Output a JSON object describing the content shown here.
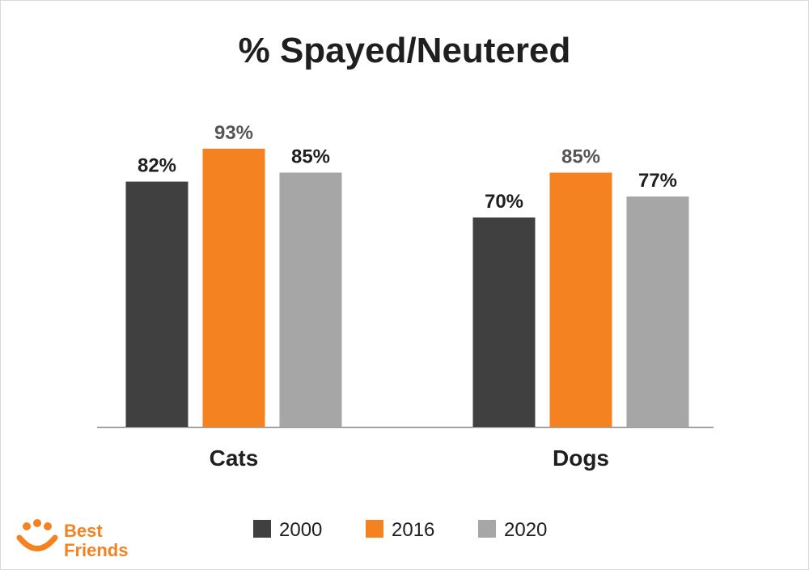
{
  "chart_data": {
    "type": "bar",
    "title": "% Spayed/Neutered",
    "xlabel": "",
    "ylabel": "",
    "categories": [
      "Cats",
      "Dogs"
    ],
    "series": [
      {
        "name": "2000",
        "values": [
          82,
          70
        ],
        "labels": [
          "82%",
          "70%"
        ],
        "color": "#404040",
        "label_color": "#1f1f1f"
      },
      {
        "name": "2016",
        "values": [
          93,
          85
        ],
        "labels": [
          "93%",
          "85%"
        ],
        "color": "#f48221",
        "label_color": "#555555"
      },
      {
        "name": "2020",
        "values": [
          85,
          77
        ],
        "labels": [
          "85%",
          "77%"
        ],
        "color": "#a6a6a6",
        "label_color": "#1f1f1f"
      }
    ],
    "ylim": [
      0,
      100
    ],
    "grid": false,
    "legend": "bottom"
  },
  "brand": {
    "logo_line1": "Best",
    "logo_line2": "Friends",
    "logo_color": "#f48221",
    "logo_icon": "paw-smile-icon"
  }
}
